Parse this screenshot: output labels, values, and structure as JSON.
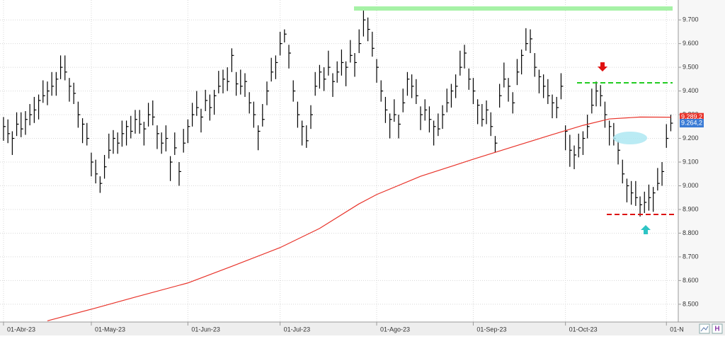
{
  "chart_data": {
    "type": "ohlc",
    "xlim": [
      -0.8,
      153.7
    ],
    "ylim": [
      8425,
      9784
    ],
    "xticks": [
      {
        "value": 0,
        "label": "01-Abr-23"
      },
      {
        "value": 20,
        "label": "01-May-23"
      },
      {
        "value": 42,
        "label": "01-Jun-23"
      },
      {
        "value": 63,
        "label": "01-Jul-23"
      },
      {
        "value": 85,
        "label": "01-Ago-23"
      },
      {
        "value": 107,
        "label": "01-Sep-23"
      },
      {
        "value": 128,
        "label": "01-Oct-23"
      },
      {
        "value": 151,
        "label": "01-N"
      }
    ],
    "yticks": [
      {
        "value": 8500,
        "label": "8.500"
      },
      {
        "value": 8600,
        "label": "8.600"
      },
      {
        "value": 8700,
        "label": "8.700"
      },
      {
        "value": 8800,
        "label": "8.800"
      },
      {
        "value": 8900,
        "label": "8.900"
      },
      {
        "value": 9000,
        "label": "9.000"
      },
      {
        "value": 9100,
        "label": "9.100"
      },
      {
        "value": 9200,
        "label": "9.200"
      },
      {
        "value": 9300,
        "label": "9.300"
      },
      {
        "value": 9400,
        "label": "9.400"
      },
      {
        "value": 9500,
        "label": "9.500"
      },
      {
        "value": 9600,
        "label": "9.600"
      },
      {
        "value": 9700,
        "label": "9.700"
      }
    ],
    "grid": true,
    "color": "#000000",
    "high": [
      9290,
      9280,
      9230,
      9310,
      9310,
      9315,
      9345,
      9375,
      9385,
      9445,
      9440,
      9480,
      9480,
      9550,
      9550,
      9455,
      9435,
      9355,
      9285,
      9265,
      9140,
      9110,
      9040,
      9130,
      9220,
      9235,
      9225,
      9275,
      9275,
      9295,
      9320,
      9320,
      9270,
      9350,
      9360,
      9255,
      9225,
      9255,
      9125,
      9225,
      9100,
      9240,
      9280,
      9350,
      9400,
      9325,
      9405,
      9385,
      9405,
      9485,
      9490,
      9500,
      9580,
      9480,
      9490,
      9475,
      9395,
      9355,
      9255,
      9345,
      9440,
      9540,
      9550,
      9650,
      9660,
      9595,
      9445,
      9355,
      9275,
      9255,
      9340,
      9480,
      9510,
      9500,
      9570,
      9475,
      9525,
      9575,
      9525,
      9615,
      9560,
      9660,
      9740,
      9710,
      9650,
      9535,
      9445,
      9375,
      9305,
      9365,
      9300,
      9410,
      9480,
      9470,
      9450,
      9335,
      9365,
      9335,
      9275,
      9305,
      9340,
      9410,
      9430,
      9470,
      9570,
      9595,
      9495,
      9455,
      9365,
      9345,
      9360,
      9310,
      9210,
      9430,
      9520,
      9455,
      9395,
      9535,
      9575,
      9665,
      9660,
      9560,
      9490,
      9470,
      9450,
      9385,
      9375,
      9475,
      9255,
      9215,
      9170,
      9220,
      9230,
      9300,
      9410,
      9440,
      9425,
      9355,
      9275,
      9265,
      9190,
      9110,
      9030,
      9020,
      9020,
      8955,
      8975,
      9005,
      8995,
      9075,
      9100,
      9260,
      9300
    ],
    "low": [
      9190,
      9180,
      9130,
      9210,
      9205,
      9215,
      9255,
      9265,
      9280,
      9350,
      9340,
      9380,
      9380,
      9450,
      9445,
      9355,
      9345,
      9245,
      9180,
      9170,
      9040,
      9010,
      8970,
      9030,
      9115,
      9135,
      9135,
      9165,
      9170,
      9200,
      9220,
      9220,
      9170,
      9250,
      9255,
      9155,
      9135,
      9145,
      9020,
      9130,
      9000,
      9140,
      9180,
      9250,
      9295,
      9225,
      9315,
      9275,
      9300,
      9390,
      9390,
      9400,
      9480,
      9380,
      9385,
      9375,
      9305,
      9245,
      9150,
      9250,
      9340,
      9440,
      9450,
      9550,
      9605,
      9495,
      9355,
      9245,
      9170,
      9160,
      9240,
      9380,
      9410,
      9400,
      9465,
      9375,
      9435,
      9465,
      9420,
      9520,
      9460,
      9560,
      9630,
      9610,
      9545,
      9435,
      9355,
      9265,
      9200,
      9270,
      9200,
      9310,
      9380,
      9370,
      9345,
      9235,
      9275,
      9225,
      9170,
      9210,
      9240,
      9310,
      9330,
      9370,
      9465,
      9495,
      9405,
      9345,
      9260,
      9250,
      9260,
      9210,
      9140,
      9330,
      9415,
      9355,
      9305,
      9425,
      9470,
      9570,
      9560,
      9460,
      9390,
      9370,
      9345,
      9285,
      9285,
      9365,
      9150,
      9080,
      9070,
      9120,
      9130,
      9200,
      9305,
      9335,
      9335,
      9245,
      9170,
      9170,
      9090,
      9010,
      8930,
      8920,
      8915,
      8870,
      8885,
      8895,
      8890,
      8980,
      9000,
      9160,
      9230
    ],
    "close": [
      9250,
      9220,
      9200,
      9260,
      9240,
      9280,
      9300,
      9320,
      9360,
      9380,
      9400,
      9420,
      9450,
      9500,
      9480,
      9420,
      9390,
      9300,
      9260,
      9200,
      9100,
      9050,
      9010,
      9080,
      9150,
      9200,
      9180,
      9220,
      9250,
      9230,
      9280,
      9260,
      9240,
      9300,
      9290,
      9220,
      9180,
      9200,
      9100,
      9160,
      9060,
      9180,
      9250,
      9300,
      9330,
      9290,
      9360,
      9330,
      9380,
      9420,
      9450,
      9440,
      9550,
      9430,
      9420,
      9440,
      9350,
      9300,
      9230,
      9280,
      9400,
      9480,
      9520,
      9600,
      9640,
      9560,
      9400,
      9300,
      9250,
      9190,
      9300,
      9420,
      9480,
      9450,
      9500,
      9440,
      9480,
      9520,
      9500,
      9550,
      9520,
      9600,
      9700,
      9660,
      9580,
      9500,
      9400,
      9320,
      9280,
      9300,
      9260,
      9350,
      9450,
      9420,
      9380,
      9300,
      9320,
      9280,
      9250,
      9240,
      9300,
      9350,
      9400,
      9420,
      9500,
      9560,
      9450,
      9400,
      9340,
      9280,
      9320,
      9250,
      9180,
      9380,
      9450,
      9420,
      9350,
      9480,
      9550,
      9600,
      9620,
      9500,
      9460,
      9420,
      9380,
      9350,
      9330,
      9420,
      9230,
      9150,
      9130,
      9160,
      9200,
      9250,
      9340,
      9400,
      9380,
      9300,
      9250,
      9200,
      9150,
      9050,
      9000,
      8970,
      8950,
      8920,
      8930,
      8950,
      8970,
      9010,
      9060,
      9200,
      9264.2
    ],
    "close_label": "9.264,2",
    "moving_average": {
      "color": "#e8332a",
      "x": [
        10,
        20,
        30,
        42,
        52,
        63,
        72,
        81,
        85,
        95,
        107,
        117,
        125,
        132,
        138,
        145,
        152
      ],
      "values": [
        8430,
        8479,
        8530,
        8590,
        8660,
        8739,
        8820,
        8924,
        8963,
        9040,
        9112,
        9170,
        9216,
        9255,
        9282,
        9290,
        9289.2
      ],
      "value_label": "9.289,2"
    },
    "toolbar_label": "H"
  }
}
